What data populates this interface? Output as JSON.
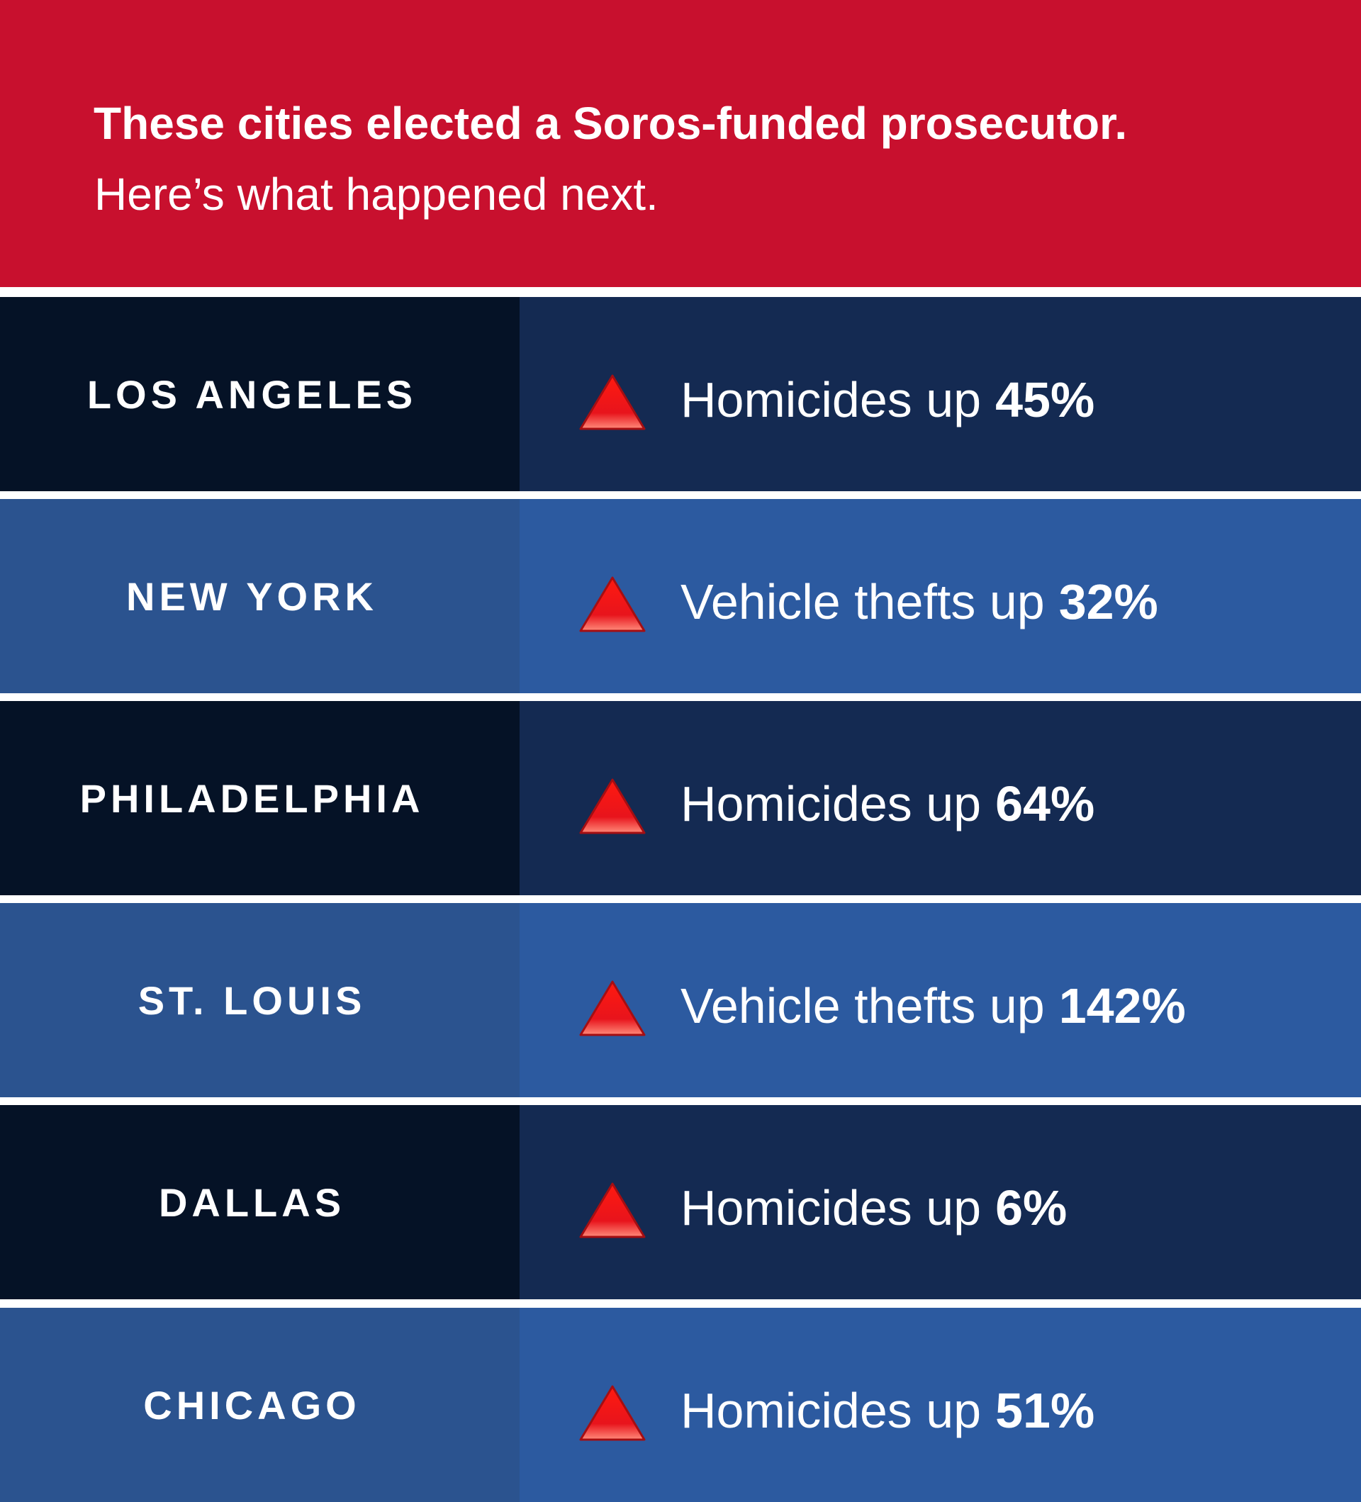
{
  "header": {
    "title": "These cities elected a Soros-funded prosecutor.",
    "subtitle": "Here’s what happened next."
  },
  "colors": {
    "header_red": "#c8102e",
    "dark_city_bg": "#051226",
    "dark_stat_bg": "#142a52",
    "light_city_bg": "#2b538f",
    "light_stat_bg": "#2c5aa0",
    "arrow_red": "#e8141c"
  },
  "icon": "red-up-triangle-icon",
  "rows": [
    {
      "city": "LOS ANGELES",
      "stat_label": "Homicides up",
      "stat_value": "45%"
    },
    {
      "city": "NEW YORK",
      "stat_label": "Vehicle thefts up",
      "stat_value": "32%"
    },
    {
      "city": "PHILADELPHIA",
      "stat_label": "Homicides up",
      "stat_value": "64%"
    },
    {
      "city": "ST. LOUIS",
      "stat_label": "Vehicle thefts up",
      "stat_value": "142%"
    },
    {
      "city": "DALLAS",
      "stat_label": "Homicides up",
      "stat_value": "6%"
    },
    {
      "city": "CHICAGO",
      "stat_label": "Homicides up",
      "stat_value": "51%"
    }
  ]
}
